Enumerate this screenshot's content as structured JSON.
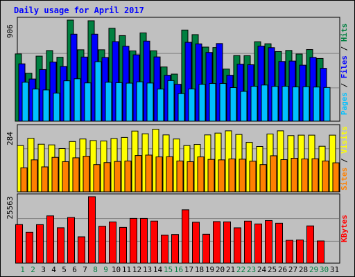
{
  "chart_data": {
    "type": "bar",
    "title": "Daily usage for April 2017",
    "categories": [
      "1",
      "2",
      "3",
      "4",
      "5",
      "6",
      "7",
      "8",
      "9",
      "10",
      "11",
      "12",
      "13",
      "14",
      "15",
      "16",
      "17",
      "18",
      "19",
      "20",
      "21",
      "22",
      "23",
      "24",
      "25",
      "26",
      "27",
      "28",
      "29",
      "30",
      "31"
    ],
    "weekend_days": [
      "1",
      "2",
      "8",
      "9",
      "15",
      "16",
      "22",
      "23",
      "29",
      "30"
    ],
    "top_panel": {
      "ymax_label": "906",
      "ymax": 906,
      "series": [
        {
          "name": "Hits",
          "color": "#008040",
          "values": [
            603,
            430,
            583,
            633,
            573,
            906,
            640,
            900,
            640,
            833,
            767,
            630,
            791,
            631,
            486,
            422,
            817,
            776,
            664,
            660,
            467,
            588,
            587,
            712,
            694,
            624,
            634,
            602,
            642,
            562,
            null
          ]
        },
        {
          "name": "Files",
          "color": "#0000ff",
          "values": [
            514,
            378,
            463,
            530,
            491,
            780,
            575,
            780,
            571,
            713,
            672,
            595,
            718,
            576,
            412,
            331,
            707,
            693,
            616,
            696,
            412,
            511,
            506,
            673,
            659,
            535,
            539,
            502,
            572,
            474,
            null
          ]
        },
        {
          "name": "Pages",
          "color": "#00c0ff",
          "values": [
            349,
            288,
            280,
            252,
            362,
            380,
            343,
            533,
            349,
            345,
            341,
            353,
            342,
            288,
            364,
            247,
            289,
            330,
            338,
            338,
            301,
            267,
            313,
            324,
            312,
            313,
            307,
            309,
            306,
            302,
            null
          ]
        }
      ]
    },
    "middle_panel": {
      "ymax_label": "284",
      "ymax": 284,
      "series": [
        {
          "name": "Visits",
          "color": "#ffff00",
          "values": [
            204,
            236,
            210,
            207,
            191,
            222,
            233,
            226,
            224,
            235,
            240,
            268,
            256,
            276,
            251,
            233,
            204,
            209,
            251,
            259,
            269,
            253,
            218,
            200,
            255,
            269,
            248,
            250,
            250,
            201,
            250
          ]
        },
        {
          "name": "Sites",
          "color": "#ff8000",
          "values": [
            106,
            141,
            110,
            152,
            133,
            150,
            157,
            120,
            129,
            134,
            136,
            160,
            162,
            154,
            155,
            136,
            133,
            154,
            143,
            141,
            145,
            144,
            135,
            120,
            159,
            142,
            148,
            145,
            146,
            136,
            128
          ]
        }
      ]
    },
    "bottom_panel": {
      "ymax_label": "25563",
      "ymax": 25563,
      "series": [
        {
          "name": "KBytes",
          "color": "#ff0000",
          "values": [
            14838,
            11891,
            14815,
            18183,
            13609,
            17576,
            10125,
            25563,
            14202,
            15848,
            13752,
            17205,
            17199,
            16183,
            10816,
            11006,
            20531,
            15735,
            11105,
            15980,
            15880,
            13590,
            16162,
            15080,
            16387,
            15355,
            8783,
            8935,
            14328,
            8538,
            null
          ]
        }
      ]
    },
    "right_labels": {
      "top": [
        {
          "text": "Pages",
          "color": "#00c0ff"
        },
        {
          "text": " / ",
          "color": "#000000"
        },
        {
          "text": "Files",
          "color": "#0000ff"
        },
        {
          "text": " / ",
          "color": "#000000"
        },
        {
          "text": "Hits",
          "color": "#008040"
        }
      ],
      "middle": [
        {
          "text": "Sites",
          "color": "#ff8000"
        },
        {
          "text": " / ",
          "color": "#000000"
        },
        {
          "text": "Visits",
          "color": "#ffff00"
        }
      ],
      "bottom": [
        {
          "text": "KBytes",
          "color": "#ff0000"
        }
      ]
    },
    "colors": {
      "background": "#c0c0c0",
      "title": "#0000ff",
      "weekday_label": "#000000",
      "weekend_label": "#008040",
      "grid": "#808080"
    },
    "grid": true
  }
}
